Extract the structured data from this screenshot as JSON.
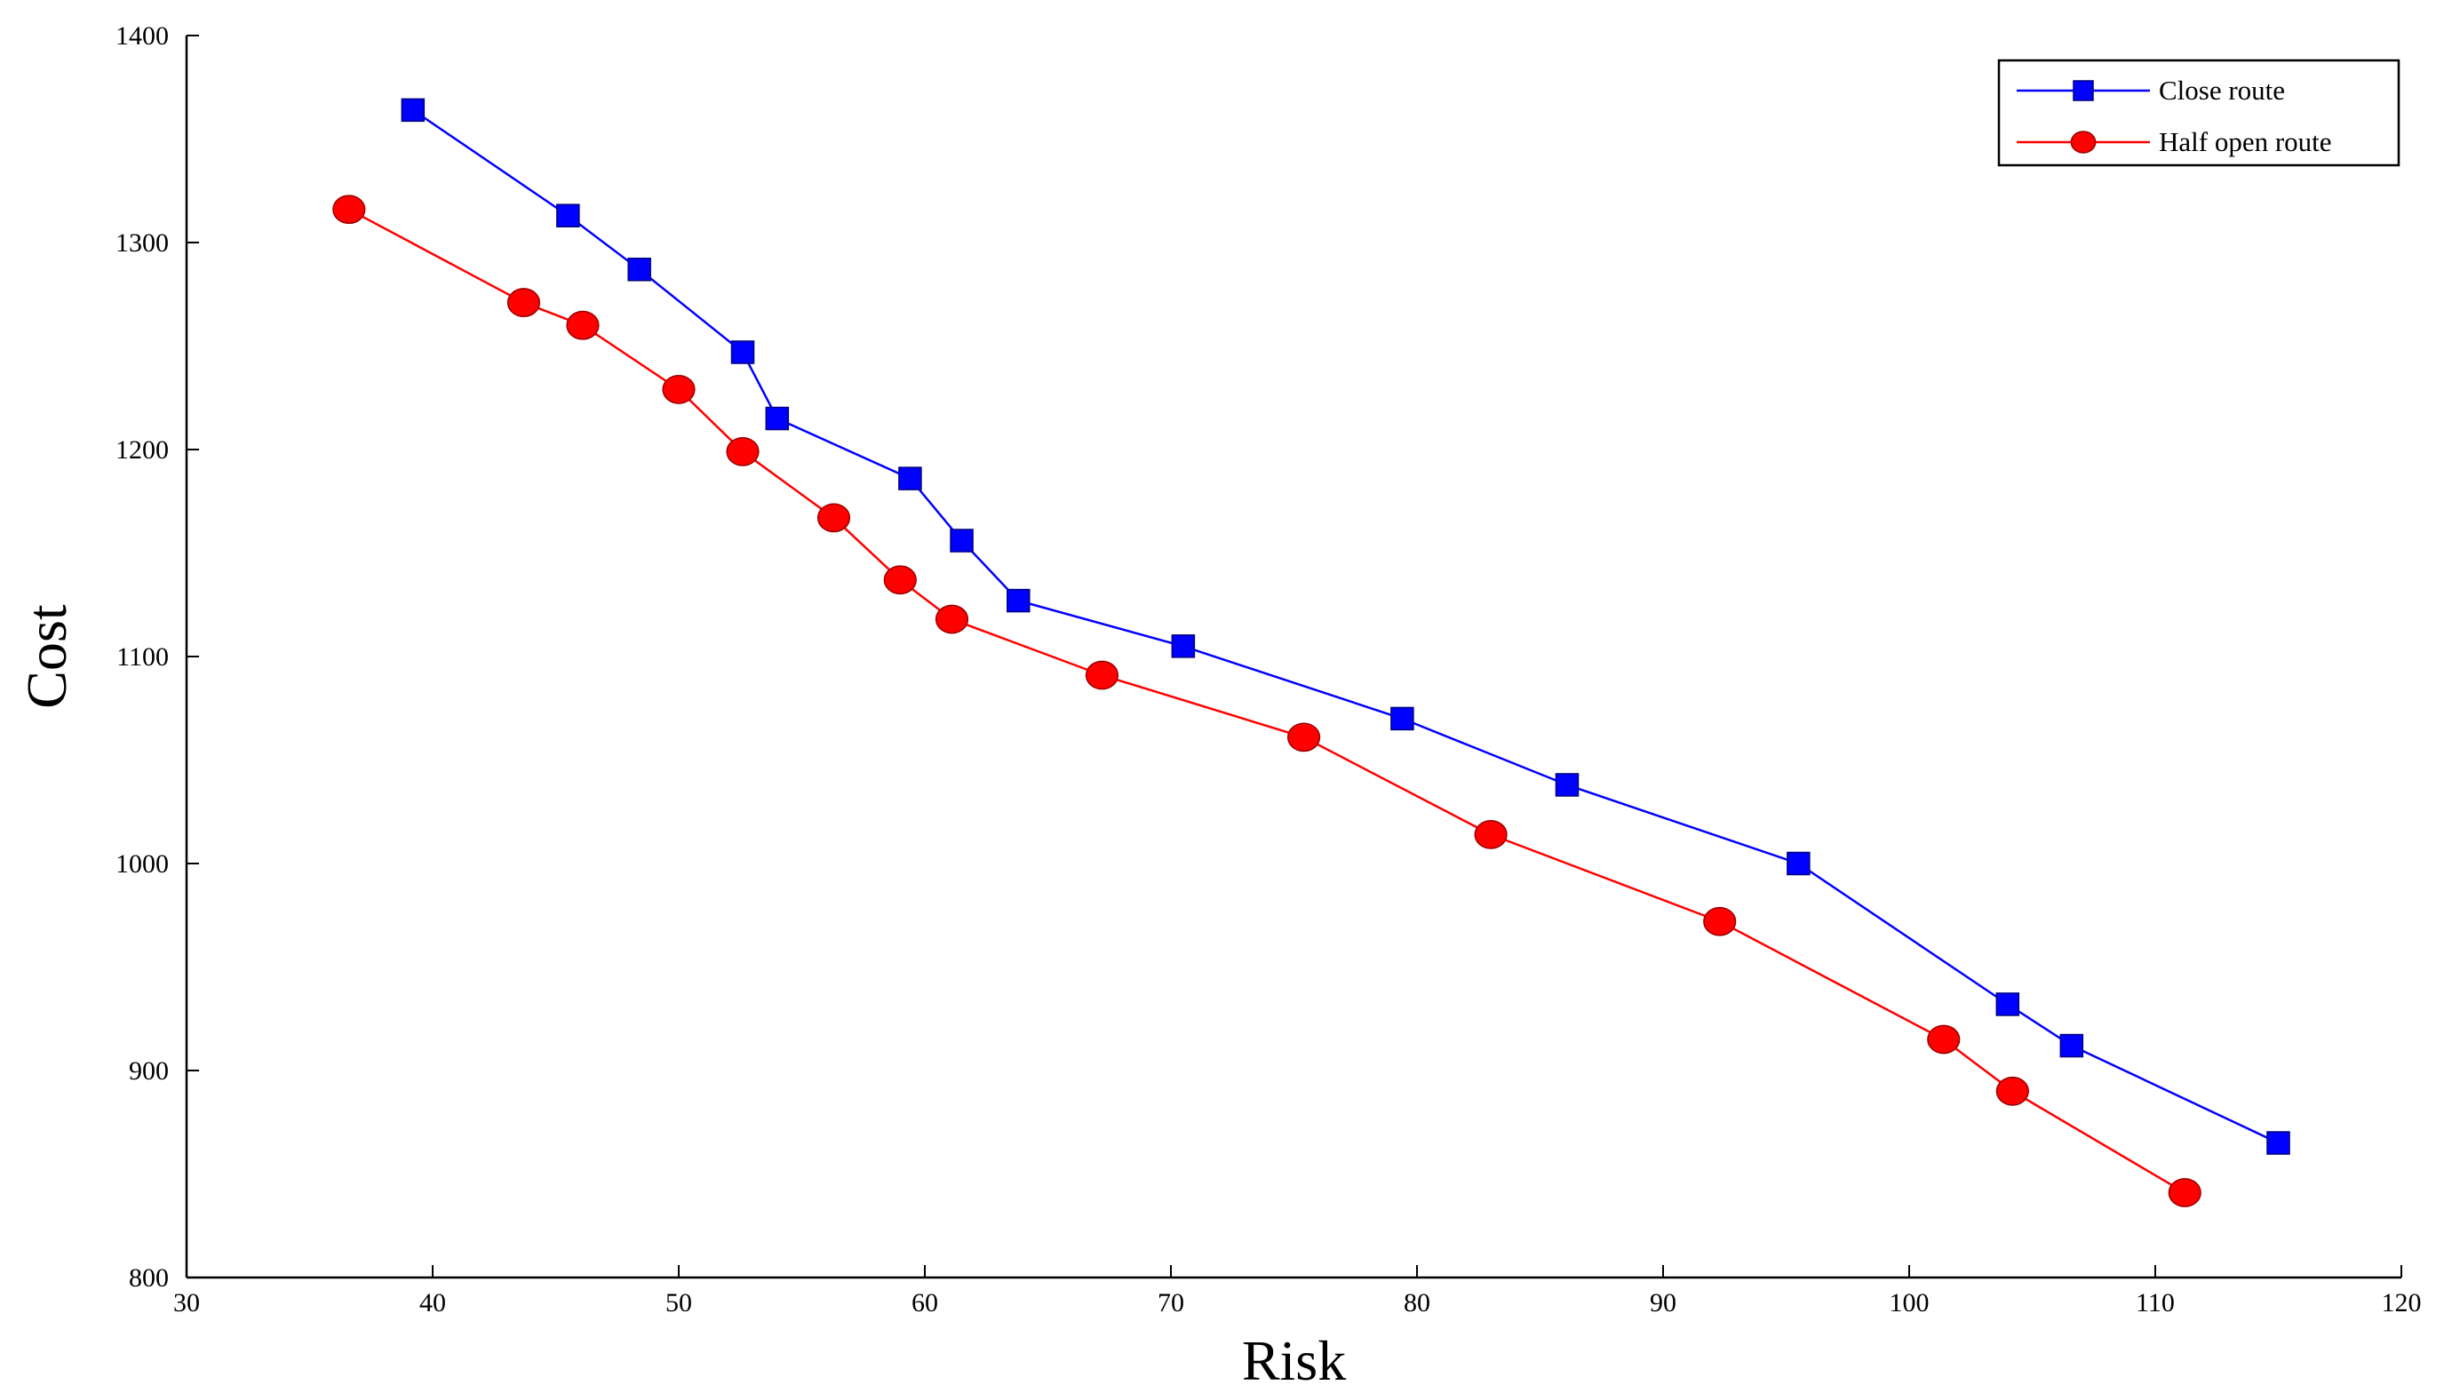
{
  "chart_data": {
    "type": "line",
    "title": "",
    "xlabel": "Risk",
    "ylabel": "Cost",
    "xlim": [
      30,
      120
    ],
    "ylim": [
      800,
      1400
    ],
    "xticks": [
      30,
      40,
      50,
      60,
      70,
      80,
      90,
      100,
      110,
      120
    ],
    "yticks": [
      800,
      900,
      1000,
      1100,
      1200,
      1300,
      1400
    ],
    "grid": false,
    "legend_position": "top-right",
    "series": [
      {
        "name": "Close route",
        "color": "#0000ff",
        "marker": "square",
        "x": [
          39.2,
          45.5,
          48.4,
          52.6,
          54.0,
          59.4,
          61.5,
          63.8,
          70.5,
          79.4,
          86.1,
          95.5,
          104.0,
          106.6,
          115.0
        ],
        "y": [
          1364,
          1313,
          1287,
          1247,
          1215,
          1186,
          1156,
          1127,
          1105,
          1070,
          1038,
          1000,
          932,
          912,
          865
        ]
      },
      {
        "name": "Half open route",
        "color": "#ff0000",
        "marker": "circle",
        "x": [
          36.6,
          43.7,
          46.1,
          50.0,
          52.6,
          56.3,
          59.0,
          61.1,
          67.2,
          75.4,
          83.0,
          92.3,
          101.4,
          104.2,
          111.2
        ],
        "y": [
          1316,
          1271,
          1260,
          1229,
          1199,
          1167,
          1137,
          1118,
          1091,
          1061,
          1014,
          972,
          915,
          890,
          841
        ]
      }
    ]
  }
}
